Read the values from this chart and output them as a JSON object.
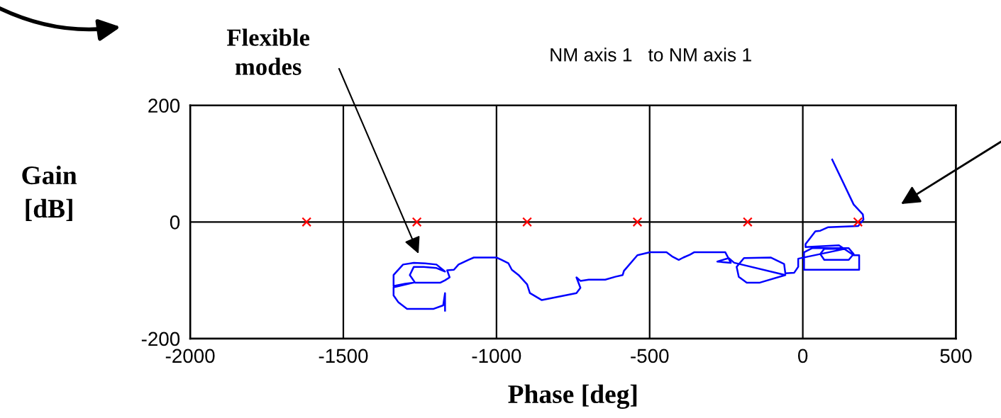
{
  "chart_data": {
    "type": "line",
    "title": "NM axis 1   to NM axis 1",
    "xlabel": "Phase [deg]",
    "ylabel": "Gain\n[dB]",
    "xlim": [
      -2000,
      500
    ],
    "xticks": [
      -2000,
      -1500,
      -1000,
      -500,
      0,
      500
    ],
    "ylim": [
      -200,
      200
    ],
    "yticks": [
      -200,
      0,
      200
    ],
    "grid": true,
    "annotations": [
      "Flexible\nmodes"
    ],
    "series": [
      {
        "color": "#0000ff",
        "marker": "none",
        "x": [
          96,
          166,
          196,
          198,
          181,
          83,
          57,
          41,
          9,
          9,
          118,
          166,
          184,
          184,
          4,
          4,
          30,
          150,
          166,
          150,
          70,
          57,
          70,
          139,
          -15,
          -15,
          -28,
          -57,
          -61,
          -105,
          -192,
          -216,
          -209,
          -183,
          -140,
          -57,
          -224,
          -242,
          -279,
          -235,
          -253,
          -355,
          -368,
          -390,
          -405,
          -427,
          -445,
          -499,
          -540,
          -584,
          -588,
          -612,
          -645,
          -699,
          -726,
          -739,
          -726,
          -739,
          -852,
          -891,
          -900,
          -928,
          -950,
          -961,
          -983,
          -1000,
          -1074,
          -1092,
          -1124,
          -1139,
          -1161,
          -1153,
          -1168,
          -1183,
          -1266,
          -1283,
          -1270,
          -1238,
          -1196,
          -1168,
          -1196,
          -1233,
          -1270,
          -1305,
          -1336,
          -1336,
          -1298,
          -1270,
          -1336,
          -1336,
          -1320,
          -1292,
          -1205,
          -1174,
          -1168,
          -1168
        ],
        "values": [
          107,
          30,
          13,
          4,
          -7,
          -9,
          -15,
          -16,
          -38,
          -43,
          -40,
          -57,
          -57,
          -82,
          -82,
          -52,
          -45,
          -45,
          -55,
          -65,
          -65,
          -55,
          -46,
          -46,
          -63,
          -77,
          -87,
          -88,
          -72,
          -61,
          -62,
          -77,
          -94,
          -104,
          -104,
          -91,
          -70,
          -62,
          -68,
          -70,
          -52,
          -52,
          -56,
          -61,
          -65,
          -59,
          -52,
          -52,
          -57,
          -84,
          -91,
          -94,
          -99,
          -99,
          -101,
          -95,
          -113,
          -122,
          -134,
          -122,
          -107,
          -91,
          -82,
          -71,
          -65,
          -61,
          -61,
          -65,
          -73,
          -82,
          -83,
          -95,
          -100,
          -104,
          -104,
          -91,
          -77,
          -77,
          -79,
          -85,
          -73,
          -71,
          -70,
          -73,
          -91,
          -110,
          -106,
          -104,
          -112,
          -126,
          -138,
          -149,
          -149,
          -143,
          -122,
          -152
        ]
      },
      {
        "type": "scatter",
        "color": "#ff0000",
        "marker": "cross",
        "x": [
          -1620,
          -1260,
          -900,
          -540,
          -180,
          180
        ],
        "values": [
          0,
          0,
          0,
          0,
          0,
          0
        ]
      }
    ]
  }
}
